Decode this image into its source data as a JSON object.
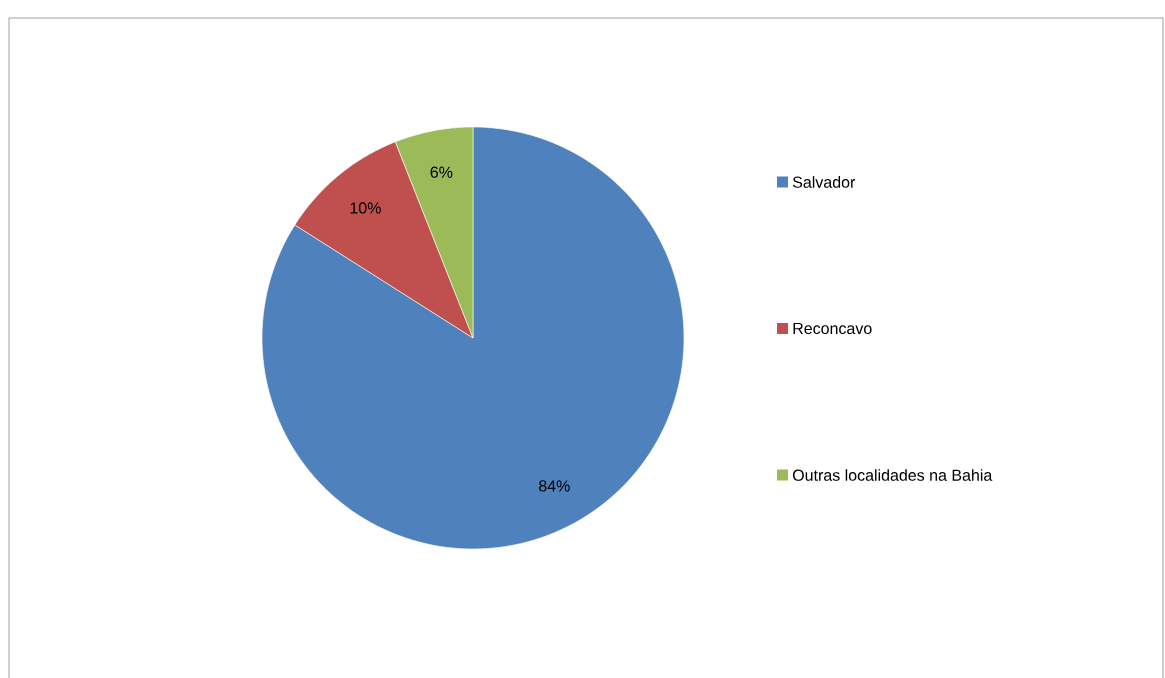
{
  "chart_data": {
    "type": "pie",
    "categories": [
      "Salvador",
      "Reconcavo",
      "Outras localidades na Bahia"
    ],
    "values": [
      84,
      10,
      6
    ],
    "colors": [
      "#4f81bd",
      "#c0504d",
      "#9bbb59"
    ],
    "value_labels": [
      "84%",
      "10%",
      "6%"
    ],
    "legend": "right"
  }
}
